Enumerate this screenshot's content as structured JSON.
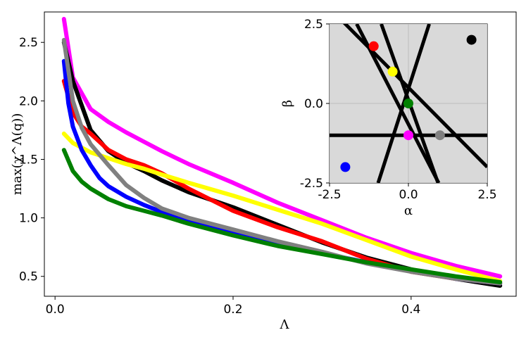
{
  "chart_data": [
    {
      "type": "line",
      "xlabel": "Λ",
      "ylabel": "max(χ^Λ(q))",
      "xlim": [
        -0.012,
        0.518
      ],
      "ylim": [
        0.33,
        2.76
      ],
      "xticks": [
        0.0,
        0.2,
        0.4
      ],
      "xtick_labels": [
        "0.0",
        "0.2",
        "0.4"
      ],
      "yticks": [
        0.5,
        1.0,
        1.5,
        2.0,
        2.5
      ],
      "ytick_labels": [
        "0.5",
        "1.0",
        "1.5",
        "2.0",
        "2.5"
      ],
      "grid": false,
      "series": [
        {
          "color": "#ff00ff",
          "x": [
            0.01,
            0.02,
            0.04,
            0.06,
            0.08,
            0.1,
            0.12,
            0.15,
            0.2,
            0.25,
            0.3,
            0.35,
            0.4,
            0.45,
            0.5
          ],
          "y": [
            2.7,
            2.2,
            1.93,
            1.82,
            1.73,
            1.65,
            1.57,
            1.46,
            1.3,
            1.13,
            0.98,
            0.83,
            0.7,
            0.59,
            0.5
          ]
        },
        {
          "color": "#000000",
          "x": [
            0.01,
            0.02,
            0.04,
            0.06,
            0.08,
            0.1,
            0.12,
            0.15,
            0.2,
            0.25,
            0.3,
            0.35,
            0.4,
            0.45,
            0.5
          ],
          "y": [
            2.5,
            2.17,
            1.75,
            1.57,
            1.47,
            1.4,
            1.32,
            1.22,
            1.09,
            0.94,
            0.79,
            0.66,
            0.56,
            0.48,
            0.42
          ]
        },
        {
          "color": "#ff0000",
          "x": [
            0.01,
            0.02,
            0.03,
            0.04,
            0.06,
            0.08,
            0.1,
            0.12,
            0.15,
            0.2,
            0.25,
            0.3,
            0.35,
            0.4,
            0.45,
            0.5
          ],
          "y": [
            2.17,
            1.9,
            1.78,
            1.72,
            1.58,
            1.5,
            1.45,
            1.38,
            1.25,
            1.06,
            0.92,
            0.8,
            0.65,
            0.54,
            0.48,
            0.44
          ]
        },
        {
          "color": "#ffff00",
          "x": [
            0.01,
            0.02,
            0.04,
            0.06,
            0.08,
            0.1,
            0.12,
            0.15,
            0.2,
            0.25,
            0.3,
            0.35,
            0.4,
            0.45,
            0.5
          ],
          "y": [
            1.72,
            1.64,
            1.56,
            1.51,
            1.46,
            1.42,
            1.37,
            1.3,
            1.19,
            1.07,
            0.95,
            0.81,
            0.67,
            0.56,
            0.46
          ]
        },
        {
          "color": "#0000ff",
          "x": [
            0.01,
            0.015,
            0.02,
            0.03,
            0.04,
            0.05,
            0.06,
            0.08,
            0.1,
            0.12,
            0.15,
            0.2,
            0.25,
            0.3,
            0.35,
            0.4,
            0.45,
            0.5
          ],
          "y": [
            2.34,
            1.98,
            1.78,
            1.58,
            1.45,
            1.34,
            1.27,
            1.18,
            1.11,
            1.05,
            0.98,
            0.88,
            0.78,
            0.7,
            0.62,
            0.55,
            0.48,
            0.44
          ]
        },
        {
          "color": "#808080",
          "x": [
            0.01,
            0.02,
            0.03,
            0.04,
            0.06,
            0.08,
            0.1,
            0.12,
            0.15,
            0.2,
            0.25,
            0.3,
            0.35,
            0.4,
            0.45,
            0.5
          ],
          "y": [
            2.52,
            2.0,
            1.77,
            1.63,
            1.45,
            1.28,
            1.17,
            1.08,
            1.0,
            0.9,
            0.8,
            0.71,
            0.61,
            0.54,
            0.48,
            0.44
          ]
        },
        {
          "color": "#008000",
          "x": [
            0.01,
            0.02,
            0.03,
            0.04,
            0.06,
            0.08,
            0.1,
            0.12,
            0.15,
            0.2,
            0.25,
            0.3,
            0.35,
            0.4,
            0.45,
            0.5
          ],
          "y": [
            1.58,
            1.4,
            1.31,
            1.25,
            1.16,
            1.1,
            1.06,
            1.02,
            0.95,
            0.85,
            0.76,
            0.69,
            0.62,
            0.56,
            0.5,
            0.45
          ]
        }
      ]
    },
    {
      "type": "scatter",
      "xlabel": "α",
      "ylabel": "β",
      "xlim": [
        -2.5,
        2.5
      ],
      "ylim": [
        -2.5,
        2.5
      ],
      "xticks": [
        -2.5,
        0.0,
        2.5
      ],
      "xtick_labels": [
        "-2.5",
        "0.0",
        "2.5"
      ],
      "yticks": [
        -2.5,
        0.0,
        2.5
      ],
      "ytick_labels": [
        "-2.5",
        "0.0",
        "2.5"
      ],
      "grid": true,
      "background": "#d9d9d9",
      "lines": [
        {
          "x": [
            -2.5,
            2.5
          ],
          "y": [
            -1.0,
            -1.0
          ]
        },
        {
          "x": [
            -1.64,
            0.96
          ],
          "y": [
            2.5,
            -2.5
          ]
        },
        {
          "x": [
            -2.5,
            2.5
          ],
          "y": [
            3.0,
            -2.0
          ]
        },
        {
          "x": [
            -0.86,
            0.94
          ],
          "y": [
            2.5,
            -2.5
          ]
        },
        {
          "x": [
            -0.96,
            0.66
          ],
          "y": [
            -2.5,
            2.5
          ]
        }
      ],
      "points": [
        {
          "x": -1.1,
          "y": 1.8,
          "color": "#ff0000"
        },
        {
          "x": -0.5,
          "y": 1.0,
          "color": "#ffff00"
        },
        {
          "x": 0.0,
          "y": 0.0,
          "color": "#008000"
        },
        {
          "x": 2.0,
          "y": 2.0,
          "color": "#000000"
        },
        {
          "x": 0.0,
          "y": -1.0,
          "color": "#ff00ff"
        },
        {
          "x": 1.0,
          "y": -1.0,
          "color": "#808080"
        },
        {
          "x": -2.0,
          "y": -2.0,
          "color": "#0000ff"
        }
      ]
    }
  ]
}
